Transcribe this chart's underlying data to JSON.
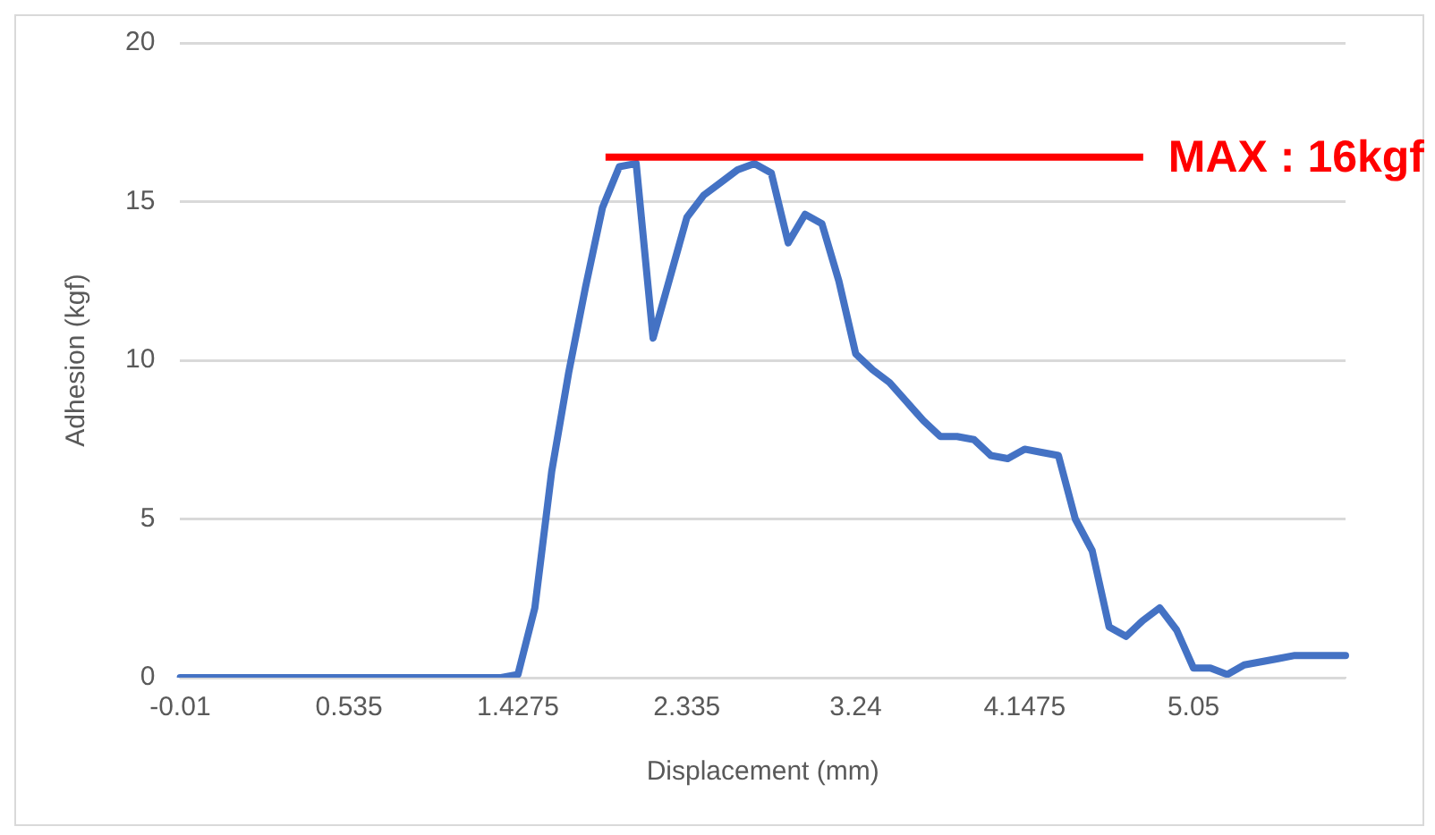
{
  "chart_data": {
    "type": "line",
    "xlabel": "Displacement (mm)",
    "ylabel": "Adhesion (kgf)",
    "categories": [
      "-0.01",
      null,
      null,
      null,
      null,
      null,
      null,
      null,
      null,
      null,
      "0.535",
      null,
      null,
      null,
      null,
      null,
      null,
      null,
      null,
      null,
      "1.4275",
      null,
      null,
      null,
      null,
      null,
      null,
      null,
      null,
      null,
      "2.335",
      null,
      null,
      null,
      null,
      null,
      null,
      null,
      null,
      null,
      "3.24",
      null,
      null,
      null,
      null,
      null,
      null,
      null,
      null,
      null,
      "4.1475",
      null,
      null,
      null,
      null,
      null,
      null,
      null,
      null,
      null,
      "5.05",
      null,
      null,
      null,
      null,
      null,
      null,
      null,
      null,
      null
    ],
    "series": [
      {
        "color": "#4472c4",
        "values": [
          0,
          0,
          0,
          0,
          0,
          0,
          0,
          0,
          0,
          0,
          0,
          0,
          0,
          0,
          0,
          0,
          0,
          0,
          0,
          0,
          0.1,
          2.2,
          6.5,
          9.6,
          12.3,
          14.8,
          16.1,
          16.2,
          10.7,
          12.6,
          14.5,
          15.2,
          15.6,
          16.0,
          16.2,
          15.9,
          13.7,
          14.6,
          14.3,
          12.5,
          10.2,
          9.7,
          9.3,
          8.7,
          8.1,
          7.6,
          7.6,
          7.5,
          7.0,
          6.9,
          7.2,
          7.1,
          7.0,
          5.0,
          4.0,
          1.6,
          1.3,
          1.8,
          2.2,
          1.5,
          0.3,
          0.3,
          0.1,
          0.4,
          0.5,
          0.6,
          0.7,
          0.7,
          0.7,
          0.7
        ]
      }
    ],
    "ylim": [
      0,
      20
    ],
    "yticks": [
      0,
      5,
      10,
      15,
      20
    ],
    "grid": "y",
    "legend": false,
    "marker": "none",
    "line_style": "solid",
    "ref_lines": [
      {
        "axis": "y",
        "value": 16.4,
        "label": "MAX : 16kgf",
        "color": "#ff0000"
      }
    ]
  }
}
